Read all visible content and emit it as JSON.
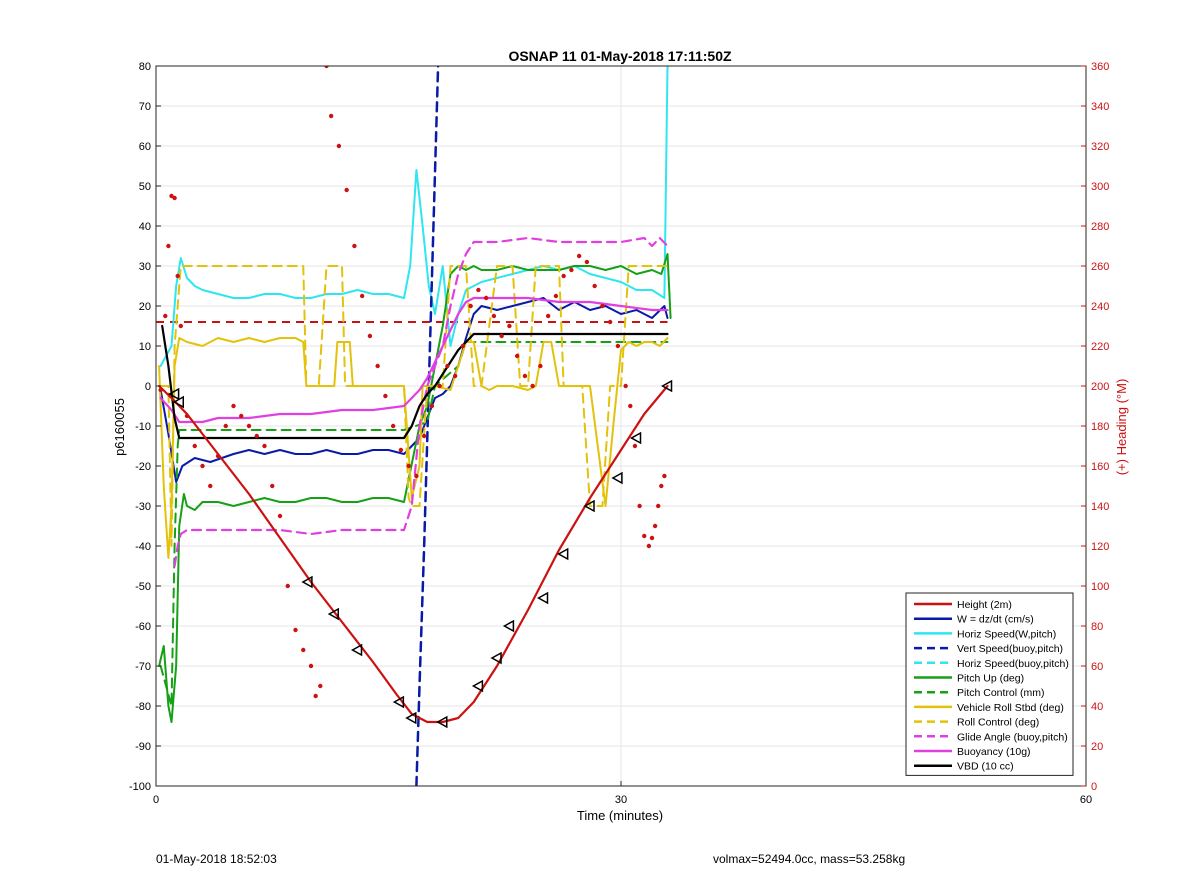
{
  "chart_data": {
    "type": "line",
    "title": "OSNAP 11 01-May-2018 17:11:50Z",
    "xlabel": "Time (minutes)",
    "ylabel_left": "p6160055",
    "ylabel_right": "(+) Heading (°M)",
    "xlim": [
      0,
      60
    ],
    "ylim_left": [
      -100,
      80
    ],
    "ylim_right": [
      0,
      360
    ],
    "xticks": [
      0,
      30,
      60
    ],
    "yticks_left": [
      -100,
      -90,
      -80,
      -70,
      -60,
      -50,
      -40,
      -30,
      -20,
      -10,
      0,
      10,
      20,
      30,
      40,
      50,
      60,
      70,
      80
    ],
    "yticks_right": [
      0,
      20,
      40,
      60,
      80,
      100,
      120,
      140,
      160,
      180,
      200,
      220,
      240,
      260,
      280,
      300,
      320,
      340,
      360
    ],
    "grid": true,
    "legend_position": "bottom-right",
    "colors": {
      "red": "#cc1111",
      "blue": "#0a1aa8",
      "cyan": "#2ee6f0",
      "green": "#16a016",
      "yellow": "#e3c20c",
      "magenta": "#e040e0",
      "black": "#000000",
      "right_axis": "#cc1111"
    },
    "series": [
      {
        "name": "Height (2m)",
        "color": "#cc1111",
        "dash": false,
        "width": 2.2,
        "x": [
          0.2,
          1.0,
          2.0,
          4.0,
          6.0,
          8.0,
          10.0,
          12.0,
          14.0,
          15.5,
          16.5,
          17.5,
          18.5,
          19.5,
          20.5,
          22.0,
          24.0,
          26.0,
          28.0,
          30.0,
          31.5,
          33.0
        ],
        "y": [
          0,
          -3,
          -7,
          -17,
          -27,
          -38,
          -49,
          -59,
          -69,
          -77,
          -82,
          -84,
          -84,
          -83,
          -79,
          -70,
          -56,
          -41,
          -28,
          -16,
          -7,
          0
        ]
      },
      {
        "name": "W = dz/dt (cm/s)",
        "color": "#0a1aa8",
        "dash": false,
        "width": 2,
        "x": [
          0.3,
          0.8,
          1.3,
          1.7,
          2.5,
          3.5,
          5,
          6,
          7,
          8,
          9,
          10,
          11,
          12,
          13,
          14,
          15,
          16,
          17,
          18,
          18.5,
          19,
          19.5,
          20,
          20.5,
          21,
          22,
          23,
          24,
          25,
          26,
          27,
          28,
          29,
          30,
          31,
          32,
          32.8,
          33
        ],
        "y": [
          -1,
          -12,
          -24,
          -20,
          -18,
          -19,
          -17,
          -16,
          -17,
          -16,
          -17,
          -17,
          -16,
          -17,
          -17,
          -16,
          -16,
          -17,
          -13,
          -3,
          -2,
          0,
          5,
          12,
          18,
          20,
          19,
          20,
          21,
          22,
          19,
          21,
          19,
          20,
          18,
          19,
          17,
          20,
          17
        ]
      },
      {
        "name": "Horiz Speed(W,pitch)",
        "color": "#2ee6f0",
        "dash": false,
        "width": 2,
        "x": [
          0.3,
          1.0,
          1.3,
          1.6,
          2.0,
          2.5,
          3.0,
          4.0,
          5.0,
          6.0,
          7.0,
          8.0,
          9.0,
          10.0,
          11.0,
          12.0,
          13.0,
          14.0,
          15.0,
          16.0,
          16.4,
          16.8,
          17.2,
          17.6,
          18.0,
          18.5,
          19.0,
          19.5,
          20.0,
          21.0,
          22.0,
          23.0,
          24.0,
          25.0,
          26.0,
          27.0,
          28.0,
          29.0,
          30.0,
          31.0,
          32.0,
          32.8,
          33.0
        ],
        "y": [
          5,
          10,
          25,
          32,
          27,
          25,
          24,
          23,
          22,
          22,
          23,
          23,
          22,
          22,
          23,
          23,
          24,
          23,
          23,
          22,
          30,
          54,
          40,
          25,
          18,
          30,
          10,
          18,
          24,
          26,
          27,
          28,
          29,
          30,
          29,
          30,
          28,
          27,
          26,
          24,
          24,
          22,
          80
        ]
      },
      {
        "name": "Vert Speed(buoy,pitch)",
        "color": "#0a1aa8",
        "dash": true,
        "width": 2.5,
        "x": [
          16.8,
          17.0,
          17.3,
          17.6,
          17.9,
          18.2
        ],
        "y": [
          -100,
          -75,
          -40,
          0,
          40,
          80
        ]
      },
      {
        "name": "Horiz Speed(buoy,pitch)",
        "color": "#2ee6f0",
        "dash": true,
        "width": 2,
        "x": [],
        "y": []
      },
      {
        "name": "Pitch Up (deg)",
        "color": "#16a016",
        "dash": false,
        "width": 2,
        "x": [
          0.2,
          0.5,
          0.8,
          1.0,
          1.3,
          1.5,
          1.8,
          2.0,
          2.5,
          3,
          4,
          5,
          6,
          7,
          8,
          9,
          10,
          11,
          12,
          13,
          14,
          15,
          16,
          17,
          17.5,
          18,
          18.5,
          19,
          19.5,
          20,
          20.5,
          21,
          22,
          23,
          24,
          25,
          26,
          27,
          28,
          29,
          30,
          31,
          32,
          32.6,
          33,
          33.2
        ],
        "y": [
          -70,
          -65,
          -80,
          -84,
          -70,
          -35,
          -27,
          -30,
          -31,
          -29,
          -29,
          -30,
          -29,
          -28,
          -29,
          -29,
          -28,
          -28,
          -29,
          -29,
          -28,
          -28,
          -29,
          -10,
          -5,
          5,
          15,
          28,
          30,
          29,
          30,
          29,
          29,
          30,
          29,
          29,
          29,
          30,
          30,
          29,
          30,
          28,
          29,
          28,
          33,
          17
        ]
      },
      {
        "name": "Pitch Control (mm)",
        "color": "#16a016",
        "dash": true,
        "width": 2,
        "x": [
          0.3,
          1.0,
          1.2,
          1.4,
          1.5,
          2.0,
          10.0,
          16.0,
          17.5,
          18.0,
          19.5,
          20.0,
          21.0,
          30.0,
          32.5,
          33.0
        ],
        "y": [
          -70,
          -80,
          -40,
          -15,
          -11,
          -11,
          -11,
          -11,
          -9,
          0,
          5,
          11,
          11,
          11,
          11,
          11
        ]
      },
      {
        "name": "Vehicle Roll Stbd (deg)",
        "color": "#e3c20c",
        "dash": false,
        "width": 2,
        "x": [
          0.2,
          0.5,
          0.8,
          1.0,
          1.2,
          1.5,
          2.0,
          3.0,
          4.0,
          5.0,
          6.0,
          7.0,
          8.0,
          9.0,
          9.5,
          9.7,
          10.5,
          11.5,
          11.7,
          12.5,
          12.7,
          14.0,
          15.0,
          16.0,
          16.5,
          17.0,
          17.2,
          18.0,
          19.0,
          19.5,
          20.0,
          20.5,
          21.0,
          21.5,
          22.0,
          23.0,
          24.0,
          24.5,
          25.0,
          25.5,
          26.0,
          27.0,
          28.0,
          28.5,
          29.0,
          29.5,
          30.0,
          30.5,
          31.0,
          31.5,
          32.0,
          32.5,
          33.0
        ],
        "y": [
          5,
          -25,
          -43,
          -30,
          5,
          12,
          11,
          10,
          12,
          11,
          12,
          11,
          12,
          12,
          11,
          0,
          0,
          0,
          11,
          11,
          0,
          0,
          0,
          0,
          -28,
          -20,
          0,
          0,
          -1,
          5,
          11,
          11,
          0,
          -1,
          0,
          0,
          -1,
          0,
          11,
          11,
          0,
          0,
          0,
          -15,
          -30,
          -10,
          9,
          11,
          10,
          11,
          11,
          10,
          12
        ]
      },
      {
        "name": "Roll Control (deg)",
        "color": "#e3c20c",
        "dash": true,
        "width": 2,
        "x": [
          0.3,
          0.8,
          1.0,
          1.2,
          1.6,
          2.0,
          9.5,
          9.7,
          10.5,
          11.0,
          11.5,
          12.0,
          12.2,
          16.0,
          16.3,
          16.5,
          17.0,
          17.5,
          18.5,
          19.0,
          19.5,
          20.0,
          20.5,
          21.0,
          22.0,
          22.3,
          23.0,
          23.5,
          24.0,
          24.5,
          26.0,
          26.3,
          27.0,
          27.5,
          28.0,
          28.3,
          28.8,
          29.3,
          30.0,
          30.5,
          31.5,
          32.0,
          33.0
        ],
        "y": [
          0,
          0,
          -40,
          10,
          30,
          30,
          30,
          0,
          0,
          30,
          30,
          30,
          0,
          0,
          -28,
          -30,
          -30,
          0,
          0,
          30,
          30,
          30,
          0,
          0,
          30,
          30,
          30,
          0,
          0,
          30,
          30,
          0,
          0,
          0,
          -30,
          -30,
          -30,
          0,
          0,
          30,
          30,
          30,
          30
        ]
      },
      {
        "name": "Glide Angle (buoy,pitch)",
        "color": "#e040e0",
        "dash": true,
        "width": 2.2,
        "x": [
          1.2,
          1.4,
          1.6,
          2.0,
          4.0,
          6.0,
          8.0,
          10.0,
          12.0,
          14.0,
          16.0,
          16.5,
          17.0,
          17.5,
          18.0,
          18.5,
          19.0,
          19.5,
          20.0,
          20.5,
          21.0,
          22.0,
          24.0,
          26.0,
          28.0,
          30.0,
          31.5,
          32.0,
          32.5,
          33.0
        ],
        "y": [
          -45,
          -40,
          -37,
          -36,
          -36,
          -36,
          -36,
          -37,
          -36,
          -36,
          -36,
          -30,
          -10,
          0,
          5,
          10,
          20,
          28,
          33,
          36,
          36,
          36,
          37,
          36,
          36,
          36,
          37,
          35,
          37,
          35
        ]
      },
      {
        "name": "Buoyancy (10g)",
        "color": "#e040e0",
        "dash": false,
        "width": 2.2,
        "x": [
          0.3,
          1.0,
          1.5,
          2.0,
          3.0,
          4.0,
          6.0,
          8.0,
          10.0,
          12.0,
          14.0,
          16.0,
          16.5,
          17.0,
          17.5,
          18.0,
          18.5,
          19.0,
          19.5,
          20.0,
          20.5,
          21.0,
          22.0,
          24.0,
          26.0,
          28.0,
          30.0,
          32.0,
          33.0
        ],
        "y": [
          -3,
          -6,
          -9,
          -9,
          -9,
          -8,
          -8,
          -7,
          -7,
          -6,
          -6,
          -5,
          -3,
          -1,
          2,
          6,
          10,
          14,
          18,
          21,
          22,
          22,
          22,
          22,
          21,
          21,
          20,
          19,
          19
        ]
      },
      {
        "name": "VBD (10 cc)",
        "color": "#000000",
        "dash": false,
        "width": 2.2,
        "x": [
          0.4,
          0.8,
          1.2,
          1.5,
          2.0,
          4.0,
          6.0,
          8.0,
          10.0,
          12.0,
          14.0,
          16.0,
          16.5,
          17.0,
          17.5,
          18.0,
          18.5,
          19.0,
          19.5,
          20.0,
          20.5,
          21.0,
          22.0,
          25.0,
          28.0,
          31.0,
          33.0
        ],
        "y": [
          15,
          5,
          -8,
          -13,
          -13,
          -13,
          -13,
          -13,
          -13,
          -13,
          -13,
          -13,
          -10,
          -5,
          -2,
          0,
          3,
          6,
          9,
          11,
          13,
          13,
          13,
          13,
          13,
          13,
          13
        ]
      }
    ],
    "reference_line": {
      "color": "#cc1111",
      "dash": true,
      "x": [
        0,
        33
      ],
      "y": [
        16,
        16
      ]
    },
    "height_markers": {
      "x": [
        1.2,
        1.5,
        9.8,
        11.5,
        13.0,
        15.7,
        16.5,
        18.5,
        20.8,
        22.0,
        22.8,
        25.0,
        26.3,
        28.0,
        29.8,
        31.0,
        33.0
      ],
      "y": [
        -2,
        -4,
        -49,
        -57,
        -66,
        -79,
        -83,
        -84,
        -75,
        -68,
        -60,
        -53,
        -42,
        -30,
        -23,
        -13,
        0
      ]
    },
    "heading_points": {
      "x": [
        0.3,
        0.6,
        0.8,
        1.0,
        1.2,
        1.4,
        1.6,
        2.0,
        2.5,
        3.0,
        3.5,
        4.0,
        4.5,
        5.0,
        5.5,
        6.0,
        6.5,
        7.0,
        7.5,
        8.0,
        8.5,
        9.0,
        9.5,
        10.0,
        10.3,
        10.6,
        11.0,
        11.3,
        11.8,
        12.3,
        12.8,
        13.3,
        13.8,
        14.3,
        14.8,
        15.3,
        15.8,
        16.3,
        16.8,
        17.3,
        17.8,
        18.3,
        18.8,
        19.3,
        19.8,
        20.3,
        20.8,
        21.3,
        21.8,
        22.3,
        22.8,
        23.3,
        23.8,
        24.3,
        24.8,
        25.3,
        25.8,
        26.3,
        26.8,
        27.3,
        27.8,
        28.3,
        28.8,
        29.3,
        29.8,
        30.3,
        30.6,
        30.9,
        31.2,
        31.5,
        31.8,
        32.0,
        32.2,
        32.4,
        32.6,
        32.8
      ],
      "y": [
        198,
        235,
        270,
        295,
        294,
        255,
        230,
        185,
        170,
        160,
        150,
        165,
        180,
        190,
        185,
        180,
        175,
        170,
        150,
        135,
        100,
        78,
        68,
        60,
        45,
        50,
        360,
        335,
        320,
        298,
        270,
        245,
        225,
        210,
        195,
        180,
        168,
        160,
        155,
        175,
        190,
        200,
        210,
        205,
        220,
        240,
        248,
        244,
        235,
        225,
        230,
        215,
        205,
        200,
        210,
        235,
        245,
        255,
        258,
        265,
        262,
        250,
        240,
        232,
        220,
        200,
        190,
        170,
        140,
        125,
        120,
        124,
        130,
        140,
        150,
        155
      ]
    }
  },
  "footer": {
    "left_text": "01-May-2018 18:52:03",
    "right_text": "volmax=52494.0cc, mass=53.258kg"
  }
}
